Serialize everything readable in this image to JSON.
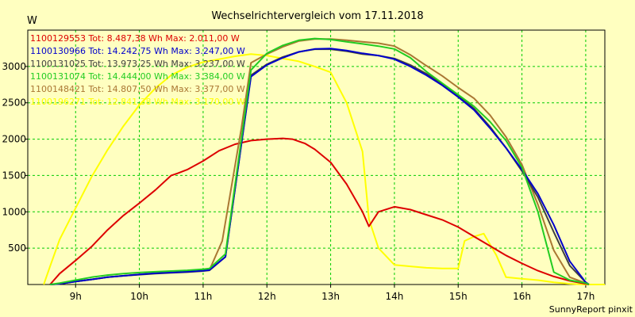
{
  "chart_data": {
    "type": "line",
    "title": "Wechselrichtervergleich vom 17.11.2018",
    "ylabel": "W",
    "xlabel": "",
    "xlim": [
      8.25,
      17.3
    ],
    "ylim": [
      0,
      3500
    ],
    "x_ticks": [
      9,
      10,
      11,
      12,
      13,
      14,
      15,
      16,
      17
    ],
    "x_tick_labels": [
      "9h",
      "10h",
      "11h",
      "12h",
      "13h",
      "14h",
      "15h",
      "16h",
      "17h"
    ],
    "y_ticks": [
      500,
      1000,
      1500,
      2000,
      2500,
      3000
    ],
    "y_tick_labels": [
      "500",
      "1000",
      "1500",
      "2000",
      "2500",
      "3000"
    ],
    "grid": true,
    "legend_position": "top-left",
    "credit": "SunnyReport pinxit",
    "series": [
      {
        "name": "1100129553 Tot: 8.487,38 Wh Max: 2.011,00 W",
        "color": "#DD0000",
        "x": [
          8.6,
          8.75,
          9.0,
          9.25,
          9.5,
          9.75,
          10.0,
          10.25,
          10.5,
          10.6,
          10.75,
          11.0,
          11.25,
          11.5,
          11.75,
          12.0,
          12.25,
          12.4,
          12.6,
          12.75,
          13.0,
          13.25,
          13.5,
          13.6,
          13.75,
          14.0,
          14.25,
          14.5,
          14.75,
          15.0,
          15.25,
          15.5,
          15.75,
          16.0,
          16.25,
          16.5,
          16.75,
          17.0,
          17.05
        ],
        "y": [
          0,
          150,
          330,
          520,
          750,
          950,
          1120,
          1300,
          1500,
          1530,
          1580,
          1700,
          1840,
          1930,
          1980,
          2000,
          2011,
          2000,
          1940,
          1860,
          1680,
          1380,
          1000,
          800,
          1000,
          1070,
          1030,
          960,
          890,
          790,
          660,
          530,
          400,
          290,
          190,
          110,
          50,
          10,
          0
        ]
      },
      {
        "name": "1100130966 Tot: 14.242,75 Wh Max: 3.247,00 W",
        "color": "#0000CC",
        "x": [
          8.6,
          8.75,
          9.0,
          9.25,
          9.5,
          9.75,
          10.0,
          10.25,
          10.5,
          10.75,
          11.0,
          11.1,
          11.35,
          11.75,
          12.0,
          12.25,
          12.5,
          12.75,
          13.0,
          13.25,
          13.5,
          13.75,
          14.0,
          14.25,
          14.5,
          14.75,
          15.0,
          15.25,
          15.5,
          15.75,
          16.0,
          16.25,
          16.5,
          16.75,
          17.0,
          17.05
        ],
        "y": [
          0,
          10,
          40,
          70,
          100,
          120,
          140,
          155,
          165,
          175,
          190,
          200,
          380,
          2860,
          3020,
          3120,
          3200,
          3240,
          3247,
          3220,
          3180,
          3150,
          3100,
          3000,
          2880,
          2740,
          2580,
          2400,
          2150,
          1880,
          1580,
          1250,
          820,
          320,
          30,
          0
        ]
      },
      {
        "name": "1100131025 Tot: 13.973,25 Wh Max: 3.237,00 W",
        "color": "#404040",
        "x": [
          8.6,
          8.75,
          9.0,
          9.25,
          9.5,
          9.75,
          10.0,
          10.25,
          10.5,
          10.75,
          11.0,
          11.1,
          11.35,
          11.75,
          12.0,
          12.25,
          12.5,
          12.75,
          13.0,
          13.25,
          13.5,
          13.75,
          14.0,
          14.25,
          14.5,
          14.75,
          15.0,
          15.25,
          15.5,
          15.75,
          16.0,
          16.25,
          16.5,
          16.75,
          17.0,
          17.05
        ],
        "y": [
          0,
          10,
          40,
          70,
          100,
          120,
          135,
          150,
          160,
          170,
          185,
          195,
          380,
          2880,
          3030,
          3130,
          3200,
          3237,
          3237,
          3210,
          3170,
          3150,
          3110,
          3020,
          2900,
          2760,
          2600,
          2420,
          2170,
          1880,
          1560,
          1200,
          720,
          260,
          30,
          0
        ]
      },
      {
        "name": "1100131074 Tot: 14.444,00 Wh Max: 3.384,00 W",
        "color": "#22CC22",
        "x": [
          8.6,
          8.75,
          9.0,
          9.25,
          9.5,
          9.75,
          10.0,
          10.25,
          10.5,
          10.75,
          11.0,
          11.1,
          11.35,
          11.75,
          12.0,
          12.25,
          12.5,
          12.75,
          13.0,
          13.25,
          13.5,
          13.75,
          14.0,
          14.25,
          14.5,
          14.75,
          15.0,
          15.25,
          15.5,
          15.75,
          16.0,
          16.25,
          16.5,
          16.75,
          17.0,
          17.05
        ],
        "y": [
          0,
          20,
          60,
          100,
          130,
          150,
          165,
          175,
          185,
          195,
          210,
          220,
          420,
          2950,
          3180,
          3290,
          3360,
          3384,
          3370,
          3340,
          3310,
          3280,
          3240,
          3120,
          2930,
          2770,
          2610,
          2450,
          2240,
          1980,
          1610,
          1000,
          170,
          60,
          20,
          0
        ]
      },
      {
        "name": "1100148421 Tot: 14.807,50 Wh Max: 3.377,00 W",
        "color": "#AA7733",
        "x": [
          8.6,
          8.75,
          9.0,
          9.25,
          9.5,
          9.75,
          10.0,
          10.25,
          10.5,
          10.75,
          11.0,
          11.1,
          11.3,
          11.6,
          11.75,
          12.0,
          12.25,
          12.5,
          12.75,
          13.0,
          13.25,
          13.5,
          13.75,
          14.0,
          14.25,
          14.5,
          14.75,
          15.0,
          15.25,
          15.5,
          15.75,
          16.0,
          16.25,
          16.5,
          16.75,
          17.0,
          17.05
        ],
        "y": [
          0,
          10,
          40,
          70,
          100,
          120,
          140,
          155,
          165,
          175,
          190,
          200,
          600,
          2150,
          3050,
          3170,
          3270,
          3350,
          3377,
          3377,
          3360,
          3340,
          3320,
          3280,
          3160,
          3010,
          2870,
          2710,
          2560,
          2330,
          2030,
          1650,
          1100,
          470,
          100,
          20,
          0
        ]
      },
      {
        "name": "1100196271 Tot: 12.841,38 Wh Max: 3.170,00 W",
        "color": "#FFFF00",
        "x": [
          8.5,
          8.6,
          8.75,
          9.0,
          9.25,
          9.5,
          9.75,
          10.0,
          10.25,
          10.5,
          10.75,
          11.0,
          11.25,
          11.5,
          11.75,
          12.0,
          12.25,
          12.5,
          12.75,
          13.0,
          13.25,
          13.5,
          13.6,
          13.75,
          14.0,
          14.25,
          14.5,
          14.75,
          15.0,
          15.1,
          15.25,
          15.4,
          15.6,
          15.75,
          16.0,
          16.25,
          16.5,
          16.75,
          17.0,
          17.3
        ],
        "y": [
          0,
          250,
          620,
          1050,
          1480,
          1850,
          2180,
          2470,
          2700,
          2880,
          2990,
          3060,
          3100,
          3140,
          3170,
          3150,
          3110,
          3070,
          3000,
          2920,
          2500,
          1830,
          900,
          500,
          270,
          250,
          230,
          220,
          220,
          600,
          660,
          700,
          400,
          100,
          80,
          60,
          30,
          10,
          0,
          0
        ]
      }
    ]
  }
}
